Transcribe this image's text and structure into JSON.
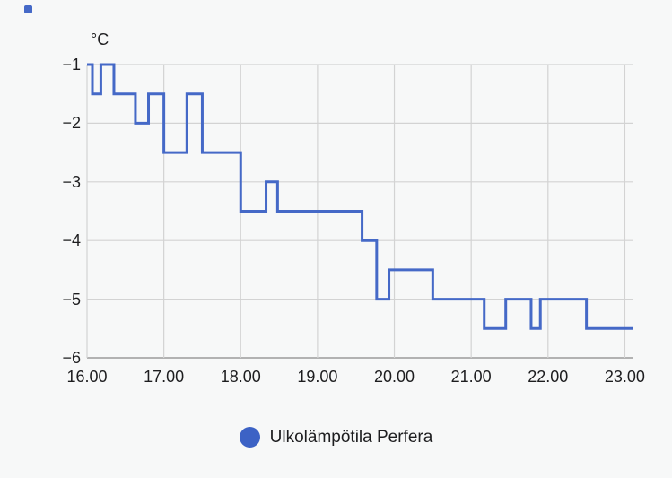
{
  "chart_data": {
    "type": "line",
    "subtype": "step-after",
    "title": "",
    "xlabel": "",
    "ylabel": "°C",
    "unit": "°C",
    "grid": true,
    "legend_position": "bottom",
    "x_range": [
      16.0,
      23.1
    ],
    "y_range": [
      -6,
      -1
    ],
    "x_ticks": {
      "labels": [
        "16.00",
        "17.00",
        "18.00",
        "19.00",
        "20.00",
        "21.00",
        "22.00",
        "23.00"
      ],
      "values": [
        16,
        17,
        18,
        19,
        20,
        21,
        22,
        23
      ]
    },
    "y_ticks": {
      "labels": [
        "−1",
        "−2",
        "−3",
        "−4",
        "−5",
        "−6"
      ],
      "values": [
        -1,
        -2,
        -3,
        -4,
        -5,
        -6
      ]
    },
    "series": [
      {
        "name": "Ulkolämpötila Perfera",
        "color": "#4569c7",
        "steps": [
          [
            16.0,
            -1.0
          ],
          [
            16.07,
            -1.5
          ],
          [
            16.18,
            -1.0
          ],
          [
            16.35,
            -1.5
          ],
          [
            16.63,
            -2.0
          ],
          [
            16.8,
            -1.5
          ],
          [
            17.0,
            -2.5
          ],
          [
            17.3,
            -1.5
          ],
          [
            17.5,
            -2.5
          ],
          [
            18.0,
            -3.5
          ],
          [
            18.33,
            -3.0
          ],
          [
            18.48,
            -3.5
          ],
          [
            19.58,
            -4.0
          ],
          [
            19.77,
            -5.0
          ],
          [
            19.93,
            -4.5
          ],
          [
            20.5,
            -5.0
          ],
          [
            21.17,
            -5.5
          ],
          [
            21.45,
            -5.0
          ],
          [
            21.78,
            -5.5
          ],
          [
            21.9,
            -5.0
          ],
          [
            22.5,
            -5.5
          ]
        ],
        "end_x": 23.1
      }
    ]
  },
  "legend": {
    "label": "Ulkolämpötila Perfera",
    "marker_color": "#3c62c5"
  },
  "colors": {
    "background": "#f7f8f8",
    "grid": "#d3d3d3",
    "axis": "#9b9b9b",
    "text": "#1d1d1f",
    "line": "#4569c7",
    "corner_dot": "#4569c7"
  }
}
